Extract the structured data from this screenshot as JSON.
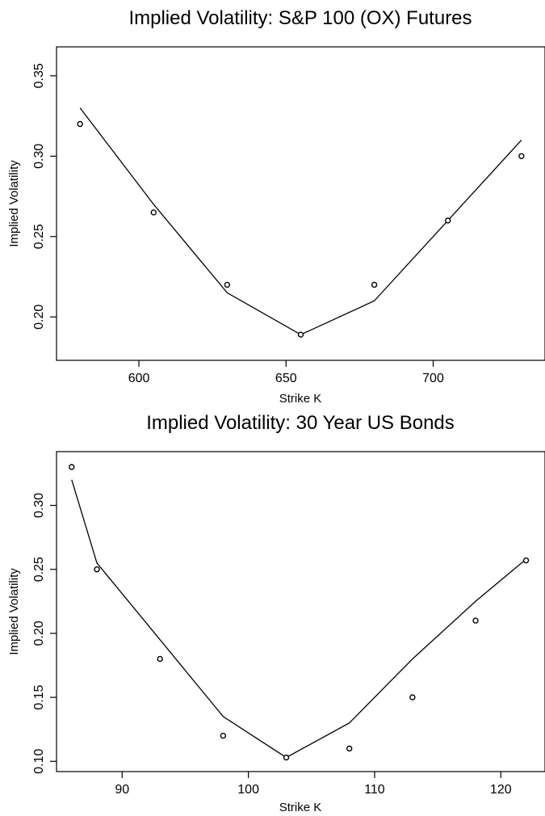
{
  "chart_data": [
    {
      "type": "line",
      "title": "Implied Volatility:  S&P 100 (OX) Futures",
      "xlabel": "Strike K",
      "ylabel": "Implied Volatility",
      "xlim": [
        572,
        738
      ],
      "ylim": [
        0.173,
        0.368
      ],
      "x_ticks": [
        600,
        650,
        700
      ],
      "y_ticks": [
        0.2,
        0.25,
        0.3,
        0.35
      ],
      "y_tick_labels": [
        "0.20",
        "0.25",
        "0.30",
        "0.35"
      ],
      "series": [
        {
          "style": "points",
          "x": [
            580,
            605,
            630,
            655,
            680,
            705,
            730
          ],
          "y": [
            0.32,
            0.265,
            0.22,
            0.189,
            0.22,
            0.26,
            0.3
          ]
        },
        {
          "style": "line",
          "x": [
            580,
            605,
            630,
            655,
            680,
            705,
            730
          ],
          "y": [
            0.33,
            0.27,
            0.215,
            0.189,
            0.21,
            0.26,
            0.31
          ]
        }
      ],
      "grid": false,
      "legend": "none"
    },
    {
      "type": "line",
      "title": "Implied Volatility: 30 Year US Bonds",
      "xlabel": "Strike K",
      "ylabel": "Implied Volatility",
      "xlim": [
        84.8,
        123.5
      ],
      "ylim": [
        0.092,
        0.342
      ],
      "x_ticks": [
        90,
        100,
        110,
        120
      ],
      "y_ticks": [
        0.1,
        0.15,
        0.2,
        0.25,
        0.3
      ],
      "y_tick_labels": [
        "0.10",
        "0.15",
        "0.20",
        "0.25",
        "0.30"
      ],
      "series": [
        {
          "style": "points",
          "x": [
            86,
            88,
            93,
            98,
            103,
            108,
            113,
            118,
            122
          ],
          "y": [
            0.33,
            0.25,
            0.18,
            0.12,
            0.103,
            0.11,
            0.15,
            0.21,
            0.257
          ]
        },
        {
          "style": "line",
          "x": [
            86,
            88,
            93,
            98,
            103,
            108,
            113,
            118,
            122
          ],
          "y": [
            0.32,
            0.255,
            0.195,
            0.135,
            0.103,
            0.13,
            0.18,
            0.225,
            0.258
          ]
        }
      ],
      "grid": false,
      "legend": "none"
    }
  ]
}
